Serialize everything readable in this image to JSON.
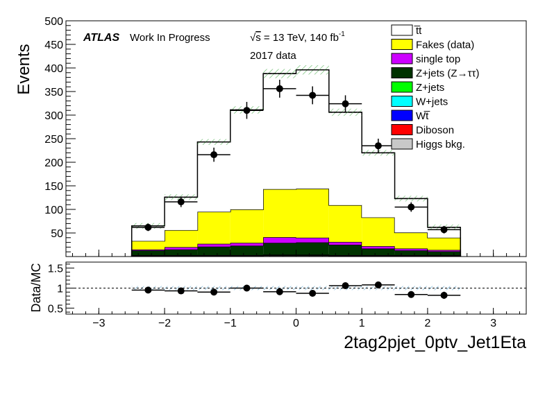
{
  "chart_data": [
    {
      "type": "bar",
      "ylabel": "Events",
      "xlim": [
        -3.5,
        3.5
      ],
      "ylim": [
        0,
        500
      ],
      "xticks": [
        "−3",
        "−2",
        "−1",
        "0",
        "1",
        "2",
        "3"
      ],
      "yticks": [
        "50",
        "100",
        "150",
        "200",
        "250",
        "300",
        "350",
        "400",
        "450",
        "500"
      ],
      "bin_edges": [
        -2.5,
        -2.0,
        -1.5,
        -1.0,
        -0.5,
        0.0,
        0.5,
        1.0,
        1.5,
        2.0,
        2.5
      ],
      "stack": [
        {
          "name": "Higgs bkg.",
          "color": "#c8c8c8",
          "values": [
            1,
            1,
            1,
            1,
            2,
            2,
            1,
            1,
            1,
            1
          ]
        },
        {
          "name": "Diboson",
          "color": "#ff0000",
          "values": [
            0.5,
            0.5,
            0.5,
            0.5,
            0.5,
            0.5,
            0.5,
            0.5,
            0.5,
            0.5
          ]
        },
        {
          "name": "Wt̅",
          "color": "#0000ff",
          "values": [
            0.5,
            0.5,
            0.5,
            0.5,
            0.5,
            0.5,
            0.5,
            0.5,
            0.5,
            0.5
          ]
        },
        {
          "name": "W+jets",
          "color": "#00ffff",
          "values": [
            0.5,
            0.5,
            0.5,
            0.5,
            0.5,
            0.5,
            0.5,
            0.5,
            0.5,
            0.5
          ]
        },
        {
          "name": "Z+jets",
          "color": "#00ff00",
          "values": [
            0.5,
            0.5,
            0.5,
            0.5,
            0.5,
            0.5,
            0.5,
            0.5,
            0.5,
            0.5
          ]
        },
        {
          "name": "Z+jets (Z→ττ)",
          "color": "#003300",
          "values": [
            10,
            12,
            18,
            20,
            25,
            26,
            22,
            14,
            10,
            8
          ]
        },
        {
          "name": "single top",
          "color": "#cc00ff",
          "values": [
            2,
            5,
            6,
            6,
            12,
            10,
            6,
            5,
            4,
            3
          ]
        },
        {
          "name": "Fakes (data)",
          "color": "#ffff00",
          "values": [
            18,
            36,
            68,
            71,
            102,
            104,
            78,
            61,
            34,
            26
          ]
        },
        {
          "name": "t̅t",
          "color": "#ffffff",
          "values": [
            32,
            70,
            148,
            211,
            245,
            252,
            197,
            137,
            72,
            22
          ]
        }
      ],
      "data": {
        "x": [
          -2.25,
          -1.75,
          -1.25,
          -0.75,
          -0.25,
          0.25,
          0.75,
          1.25,
          1.75,
          2.25
        ],
        "y": [
          62,
          116,
          216,
          310,
          356,
          342,
          324,
          235,
          105,
          57
        ],
        "yerr": [
          8,
          11,
          15,
          18,
          19,
          19,
          18,
          15,
          10,
          8
        ]
      },
      "legend": [
        "t̅t",
        "Fakes (data)",
        "single top",
        "Z+jets (Z→ττ)",
        "Z+jets",
        "W+jets",
        "Wt̅",
        "Diboson",
        "Higgs bkg."
      ],
      "legend_position": "top-right"
    },
    {
      "type": "scatter",
      "ylabel": "Data/MC",
      "xlabel": "2tag2pjet_0ptv_Jet1Eta",
      "xlim": [
        -3.5,
        3.5
      ],
      "ylim": [
        0.35,
        1.65
      ],
      "yticks": [
        "0.5",
        "1",
        "1.5"
      ],
      "reference_line": 1,
      "x": [
        -2.25,
        -1.75,
        -1.25,
        -0.75,
        -0.25,
        0.25,
        0.75,
        1.25,
        1.75,
        2.25
      ],
      "y": [
        0.95,
        0.93,
        0.9,
        1.0,
        0.91,
        0.87,
        1.06,
        1.08,
        0.84,
        0.82
      ],
      "yerr": [
        0.08,
        0.05,
        0.05,
        0.04,
        0.04,
        0.04,
        0.04,
        0.05,
        0.07,
        0.09
      ]
    }
  ],
  "annotations": {
    "atlas": "ATLAS",
    "status": "Work In Progress",
    "energy_prefix": "s",
    "energy": " = 13 TeV, 140 fb",
    "lumi_exp": "-1",
    "dataset": "2017 data"
  }
}
